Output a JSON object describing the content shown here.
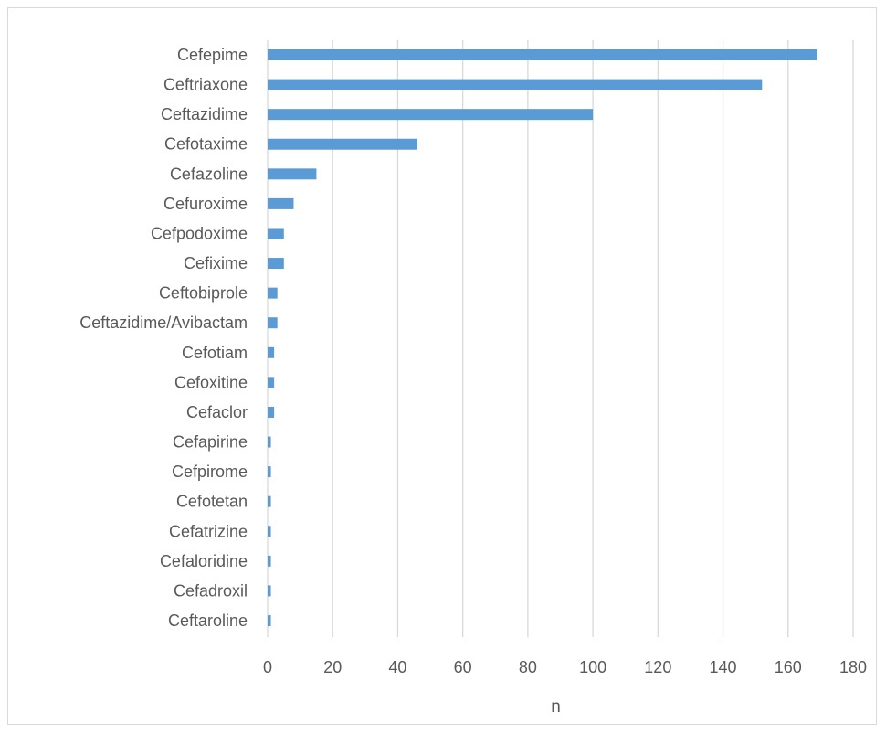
{
  "chart_data": {
    "type": "bar",
    "orientation": "horizontal",
    "categories": [
      "Cefepime",
      "Ceftriaxone",
      "Ceftazidime",
      "Cefotaxime",
      "Cefazoline",
      "Cefuroxime",
      "Cefpodoxime",
      "Cefixime",
      "Ceftobiprole",
      "Ceftazidime/Avibactam",
      "Cefotiam",
      "Cefoxitine",
      "Cefaclor",
      "Cefapirine",
      "Cefpirome",
      "Cefotetan",
      "Cefatrizine",
      "Cefaloridine",
      "Cefadroxil",
      "Ceftaroline"
    ],
    "values": [
      169,
      152,
      100,
      46,
      15,
      8,
      5,
      5,
      3,
      3,
      2,
      2,
      2,
      1,
      1,
      1,
      1,
      1,
      1,
      1
    ],
    "xlabel": "n",
    "ylabel": "",
    "title": "",
    "xlim": [
      0,
      180
    ],
    "xticks": [
      "0",
      "20",
      "40",
      "60",
      "80",
      "100",
      "120",
      "140",
      "160",
      "180"
    ],
    "grid": "vertical",
    "legend": "none",
    "bar_color": "#5b9bd5",
    "grid_color": "#d9d9d9"
  }
}
